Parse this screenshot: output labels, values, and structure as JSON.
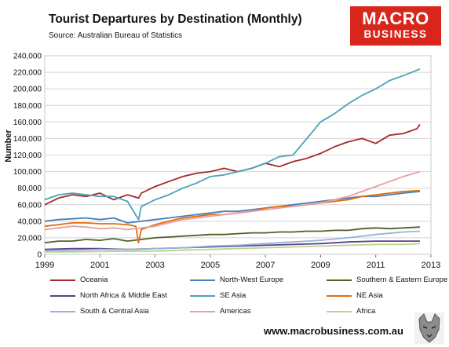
{
  "header": {
    "title": "Tourist Departures by Destination (Monthly)",
    "source": "Source: Australian Bureau of Statistics"
  },
  "logo": {
    "top": "MACRO",
    "bottom": "BUSINESS",
    "color": "#d9261c"
  },
  "footer": {
    "site": "www.macrobusiness.com.au"
  },
  "chart_data": {
    "type": "line",
    "title": "Tourist Departures by Destination (Monthly)",
    "ylabel": "Number",
    "xlabel": "",
    "xlim": [
      1999,
      2013
    ],
    "ylim": [
      0,
      240000
    ],
    "xticks": [
      "1999",
      "2001",
      "2003",
      "2005",
      "2007",
      "2009",
      "2011",
      "2013"
    ],
    "yticks": [
      "0",
      "20,000",
      "40,000",
      "60,000",
      "80,000",
      "100,000",
      "120,000",
      "140,000",
      "160,000",
      "180,000",
      "200,000",
      "220,000",
      "240,000"
    ],
    "grid": "horizontal",
    "legend_position": "bottom",
    "series": [
      {
        "name": "Oceania",
        "color": "#a52a2a",
        "x": [
          1999.0,
          1999.5,
          2000.0,
          2000.5,
          2001.0,
          2001.5,
          2002.0,
          2002.4,
          2002.5,
          2003.0,
          2003.5,
          2004.0,
          2004.5,
          2005.0,
          2005.5,
          2006.0,
          2006.5,
          2007.0,
          2007.5,
          2008.0,
          2008.5,
          2009.0,
          2009.5,
          2010.0,
          2010.5,
          2011.0,
          2011.5,
          2012.0,
          2012.5,
          2012.6
        ],
        "values": [
          60000,
          68000,
          72000,
          70000,
          74000,
          66000,
          72000,
          68000,
          74000,
          82000,
          88000,
          94000,
          98000,
          100000,
          104000,
          100000,
          104000,
          110000,
          106000,
          112000,
          116000,
          122000,
          130000,
          136000,
          140000,
          134000,
          144000,
          146000,
          152000,
          157000
        ]
      },
      {
        "name": "North-West Europe",
        "color": "#4a7ebb",
        "x": [
          1999.0,
          1999.5,
          2000.0,
          2000.5,
          2001.0,
          2001.5,
          2002.0,
          2002.5,
          2003.0,
          2003.5,
          2004.0,
          2004.5,
          2005.0,
          2005.5,
          2006.0,
          2006.5,
          2007.0,
          2007.5,
          2008.0,
          2008.5,
          2009.0,
          2009.5,
          2010.0,
          2010.5,
          2011.0,
          2011.5,
          2012.0,
          2012.6
        ],
        "values": [
          40000,
          42000,
          43000,
          44000,
          42000,
          44000,
          38000,
          40000,
          42000,
          44000,
          46000,
          48000,
          50000,
          52000,
          52000,
          54000,
          56000,
          58000,
          60000,
          62000,
          64000,
          66000,
          68000,
          70000,
          70000,
          72000,
          74000,
          76000
        ]
      },
      {
        "name": "Southern & Eastern Europe",
        "color": "#4f6228",
        "x": [
          1999.0,
          1999.5,
          2000.0,
          2000.5,
          2001.0,
          2001.5,
          2002.0,
          2002.5,
          2003.0,
          2003.5,
          2004.0,
          2004.5,
          2005.0,
          2005.5,
          2006.0,
          2006.5,
          2007.0,
          2007.5,
          2008.0,
          2008.5,
          2009.0,
          2009.5,
          2010.0,
          2010.5,
          2011.0,
          2011.5,
          2012.0,
          2012.6
        ],
        "values": [
          14000,
          16000,
          16000,
          18000,
          17000,
          19000,
          16000,
          18000,
          20000,
          21000,
          22000,
          23000,
          24000,
          24000,
          25000,
          26000,
          26000,
          27000,
          27000,
          28000,
          28000,
          29000,
          29000,
          31000,
          32000,
          31000,
          32000,
          33000
        ]
      },
      {
        "name": "North Africa & Middle East",
        "color": "#5f3e8c",
        "x": [
          1999.0,
          2000.0,
          2001.0,
          2002.0,
          2003.0,
          2004.0,
          2005.0,
          2006.0,
          2007.0,
          2008.0,
          2009.0,
          2010.0,
          2011.0,
          2012.0,
          2012.6
        ],
        "values": [
          6000,
          7000,
          7000,
          6000,
          7000,
          8000,
          9000,
          10000,
          11000,
          12000,
          13000,
          15000,
          16000,
          16000,
          16000
        ]
      },
      {
        "name": "SE Asia",
        "color": "#4aa3b8",
        "x": [
          1999.0,
          1999.5,
          2000.0,
          2000.5,
          2001.0,
          2001.5,
          2002.0,
          2002.4,
          2002.5,
          2003.0,
          2003.5,
          2004.0,
          2004.5,
          2005.0,
          2005.5,
          2006.0,
          2006.5,
          2007.0,
          2007.5,
          2008.0,
          2008.5,
          2009.0,
          2009.5,
          2010.0,
          2010.5,
          2011.0,
          2011.5,
          2012.0,
          2012.6
        ],
        "values": [
          66000,
          72000,
          74000,
          72000,
          70000,
          70000,
          64000,
          42000,
          58000,
          66000,
          72000,
          80000,
          86000,
          94000,
          96000,
          100000,
          104000,
          110000,
          118000,
          120000,
          140000,
          160000,
          170000,
          182000,
          192000,
          200000,
          210000,
          216000,
          224000
        ]
      },
      {
        "name": "NE Asia",
        "color": "#e46c0a",
        "x": [
          1999.0,
          1999.5,
          2000.0,
          2000.5,
          2001.0,
          2001.5,
          2002.0,
          2002.3,
          2002.4,
          2002.5,
          2003.0,
          2003.5,
          2004.0,
          2004.5,
          2005.0,
          2005.5,
          2006.0,
          2006.5,
          2007.0,
          2007.5,
          2008.0,
          2008.5,
          2009.0,
          2009.5,
          2010.0,
          2010.5,
          2011.0,
          2011.5,
          2012.0,
          2012.6
        ],
        "values": [
          34000,
          36000,
          38000,
          38000,
          37000,
          37000,
          36000,
          34000,
          14000,
          30000,
          36000,
          40000,
          44000,
          46000,
          48000,
          48000,
          50000,
          52000,
          56000,
          58000,
          58000,
          60000,
          62000,
          64000,
          66000,
          70000,
          72000,
          74000,
          76000,
          77000
        ]
      },
      {
        "name": "South & Central Asia",
        "color": "#95b3d7",
        "x": [
          1999.0,
          2000.0,
          2001.0,
          2002.0,
          2003.0,
          2004.0,
          2005.0,
          2006.0,
          2007.0,
          2008.0,
          2009.0,
          2010.0,
          2011.0,
          2012.0,
          2012.6
        ],
        "values": [
          4000,
          5000,
          6000,
          6000,
          7000,
          8000,
          10000,
          11000,
          13000,
          15000,
          17000,
          20000,
          24000,
          27000,
          28000
        ]
      },
      {
        "name": "Americas",
        "color": "#e6a0a0",
        "x": [
          1999.0,
          1999.5,
          2000.0,
          2000.5,
          2001.0,
          2001.5,
          2002.0,
          2002.5,
          2003.0,
          2003.5,
          2004.0,
          2004.5,
          2005.0,
          2005.5,
          2006.0,
          2006.5,
          2007.0,
          2007.5,
          2008.0,
          2008.5,
          2009.0,
          2009.5,
          2010.0,
          2010.5,
          2011.0,
          2011.5,
          2012.0,
          2012.6
        ],
        "values": [
          30000,
          32000,
          34000,
          33000,
          31000,
          32000,
          30000,
          32000,
          34000,
          38000,
          42000,
          44000,
          46000,
          48000,
          50000,
          52000,
          54000,
          56000,
          58000,
          60000,
          62000,
          66000,
          70000,
          76000,
          82000,
          88000,
          94000,
          100000
        ]
      },
      {
        "name": "Africa",
        "color": "#b7d58a",
        "x": [
          1999.0,
          2000.0,
          2001.0,
          2002.0,
          2003.0,
          2004.0,
          2005.0,
          2006.0,
          2007.0,
          2008.0,
          2009.0,
          2010.0,
          2011.0,
          2012.0,
          2012.6
        ],
        "values": [
          3000,
          3000,
          3500,
          4000,
          4000,
          5000,
          6000,
          7000,
          8000,
          9000,
          10000,
          11000,
          12000,
          12000,
          13000
        ]
      }
    ]
  }
}
